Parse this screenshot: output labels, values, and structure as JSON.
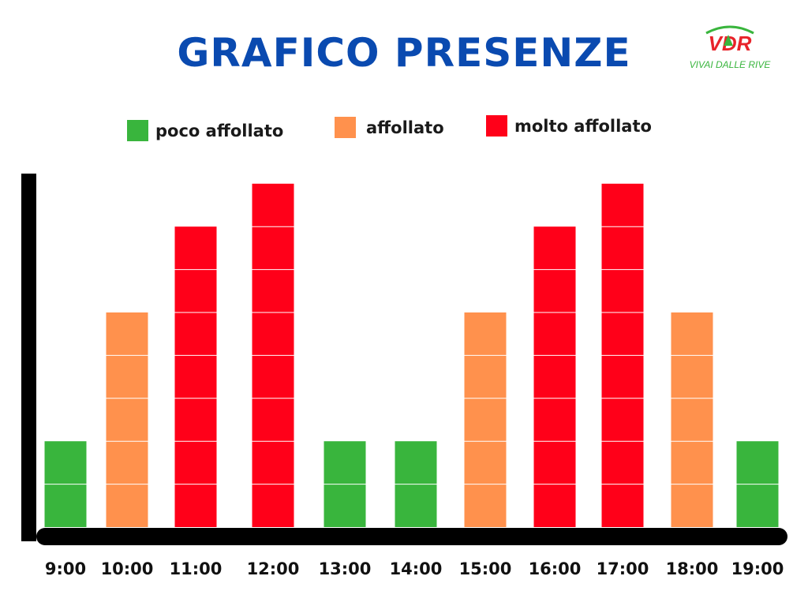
{
  "header": {
    "title": "GRAFICO PRESENZE",
    "logo_text": "VDR",
    "logo_subtext": "VIVAI DALLE RIVE"
  },
  "colors": {
    "title": "#0a4ab0",
    "green": "#39b53d",
    "orange": "#ff914d",
    "red": "#ff0019",
    "axis": "#000000"
  },
  "legend": [
    {
      "label": "poco affollato",
      "color": "#39b53d"
    },
    {
      "label": "affollato",
      "color": "#ff914d"
    },
    {
      "label": "molto affollato",
      "color": "#ff0019"
    }
  ],
  "chart_data": {
    "type": "bar",
    "title": "GRAFICO PRESENZE",
    "xlabel": "",
    "ylabel": "",
    "ylim": [
      0,
      8
    ],
    "grid": false,
    "legend_position": "top",
    "categories": [
      "9:00",
      "10:00",
      "11:00",
      "12:00",
      "13:00",
      "14:00",
      "15:00",
      "16:00",
      "17:00",
      "18:00",
      "19:00"
    ],
    "values": [
      2,
      5,
      7,
      8,
      2,
      2,
      5,
      7,
      8,
      5,
      2
    ],
    "levels": [
      "poco affollato",
      "affollato",
      "molto affollato",
      "molto affollato",
      "poco affollato",
      "poco affollato",
      "affollato",
      "molto affollato",
      "molto affollato",
      "affollato",
      "poco affollato"
    ]
  }
}
